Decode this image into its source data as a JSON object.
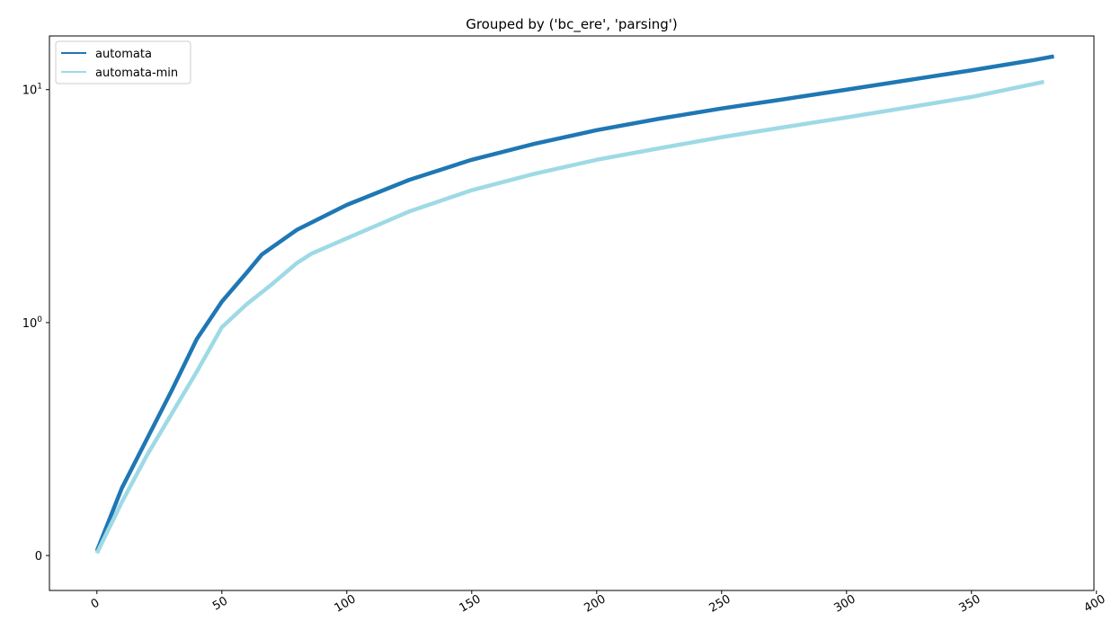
{
  "chart_data": {
    "type": "line",
    "title": "Grouped by ('bc_ere', 'parsing')",
    "xlabel": "",
    "ylabel": "",
    "xlim": [
      -19,
      399
    ],
    "ylim": [
      -0.15,
      17
    ],
    "yscale": "symlog",
    "symlog_linthresh": 1,
    "grid": false,
    "legend_position": "upper-left",
    "x_ticks": [
      0,
      50,
      100,
      150,
      200,
      250,
      300,
      350,
      400
    ],
    "x_tick_labels": [
      "0",
      "50",
      "100",
      "150",
      "200",
      "250",
      "300",
      "350",
      "400"
    ],
    "y_ticks": [
      0,
      1,
      10
    ],
    "y_tick_labels": [
      "0",
      "10^0",
      "10^1"
    ],
    "series": [
      {
        "name": "automata",
        "color": "#1f77b4",
        "x": [
          0,
          10,
          20,
          30,
          40,
          50,
          60,
          66,
          80,
          100,
          125,
          150,
          175,
          200,
          225,
          250,
          275,
          300,
          325,
          350,
          375,
          383
        ],
        "y": [
          0.02,
          0.29,
          0.5,
          0.71,
          0.93,
          1.23,
          1.64,
          1.96,
          2.5,
          3.2,
          4.1,
          5.0,
          5.85,
          6.7,
          7.5,
          8.3,
          9.1,
          10.0,
          11.0,
          12.1,
          13.4,
          13.9
        ]
      },
      {
        "name": "automata-min",
        "color": "#9edae5",
        "x": [
          0,
          10,
          20,
          30,
          40,
          50,
          60,
          70,
          80,
          86,
          100,
          125,
          150,
          175,
          200,
          225,
          250,
          275,
          300,
          325,
          350,
          379
        ],
        "y": [
          0.01,
          0.23,
          0.43,
          0.61,
          0.79,
          0.98,
          1.2,
          1.46,
          1.8,
          1.98,
          2.3,
          3.0,
          3.7,
          4.35,
          5.0,
          5.6,
          6.25,
          6.9,
          7.6,
          8.4,
          9.3,
          10.8
        ]
      }
    ]
  }
}
